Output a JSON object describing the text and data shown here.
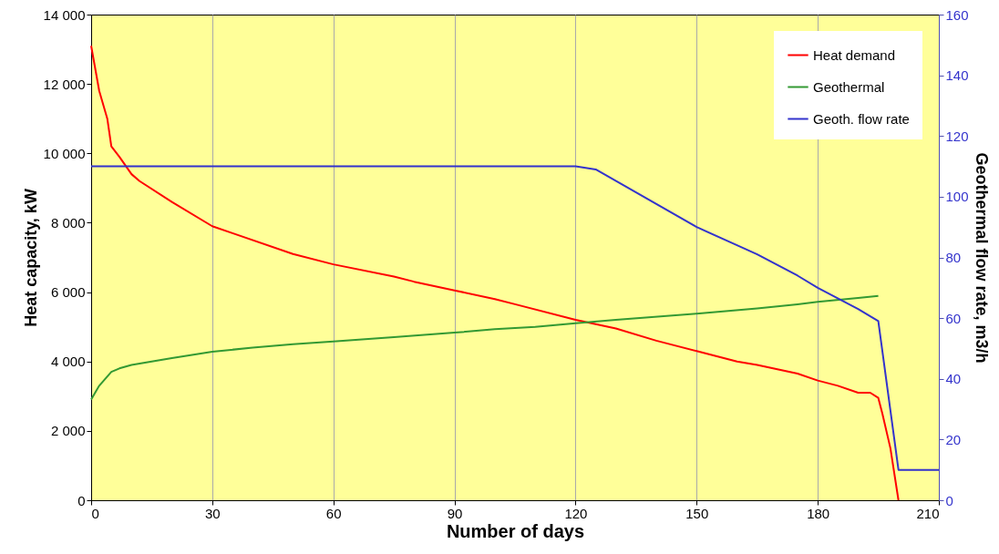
{
  "chart_data": {
    "type": "line",
    "xlabel": "Number of days",
    "ylabel": "Heat capacity, kW",
    "y2label": "Geothermal flow rate, m3/h",
    "xlim": [
      0,
      210
    ],
    "xticks": [
      0,
      30,
      60,
      90,
      120,
      150,
      180,
      210
    ],
    "ylim": [
      0,
      14000
    ],
    "yticks": [
      0,
      {
        "value": 2000,
        "label": "2 000"
      },
      {
        "value": 4000,
        "label": "4 000"
      },
      {
        "value": 6000,
        "label": "6 000"
      },
      {
        "value": 8000,
        "label": "8 000"
      },
      {
        "value": 10000,
        "label": "10 000"
      },
      {
        "value": 12000,
        "label": "12 000"
      },
      {
        "value": 14000,
        "label": "14 000"
      }
    ],
    "y2lim": [
      0,
      160
    ],
    "y2ticks": [
      0,
      20,
      40,
      60,
      80,
      100,
      120,
      140,
      160
    ],
    "grid": "x",
    "legend": "top right",
    "marker": "none",
    "line_style": "solid",
    "series": [
      {
        "name": "Heat demand",
        "color": "#ff0000",
        "x": [
          0,
          2,
          4,
          5,
          7,
          10,
          12,
          20,
          30,
          35,
          50,
          60,
          75,
          80,
          90,
          100,
          105,
          120,
          130,
          140,
          150,
          160,
          165,
          175,
          180,
          185,
          190,
          193,
          195,
          196,
          198,
          200
        ],
        "values": [
          13100,
          11800,
          11000,
          10200,
          9900,
          9400,
          9200,
          8600,
          7900,
          7700,
          7100,
          6800,
          6450,
          6300,
          6050,
          5800,
          5650,
          5200,
          4950,
          4600,
          4300,
          4000,
          3900,
          3650,
          3450,
          3300,
          3100,
          3100,
          2950,
          2500,
          1500,
          0
        ]
      },
      {
        "name": "Geothermal",
        "color": "#339933",
        "x": [
          0,
          2,
          5,
          7,
          10,
          15,
          20,
          30,
          40,
          50,
          60,
          75,
          90,
          100,
          110,
          120,
          130,
          150,
          165,
          175,
          180,
          190,
          195
        ],
        "values": [
          2900,
          3300,
          3700,
          3800,
          3900,
          4000,
          4100,
          4280,
          4400,
          4500,
          4580,
          4700,
          4830,
          4930,
          5000,
          5100,
          5200,
          5380,
          5530,
          5650,
          5720,
          5830,
          5890
        ]
      },
      {
        "name": "Geoth. flow rate",
        "color": "#3333cc",
        "axis": "y2",
        "x": [
          0,
          120,
          125,
          150,
          160,
          165,
          175,
          180,
          190,
          195,
          200,
          210
        ],
        "values": [
          110,
          110,
          109,
          90,
          84,
          81,
          74,
          70,
          63,
          59,
          10,
          10
        ]
      }
    ]
  }
}
